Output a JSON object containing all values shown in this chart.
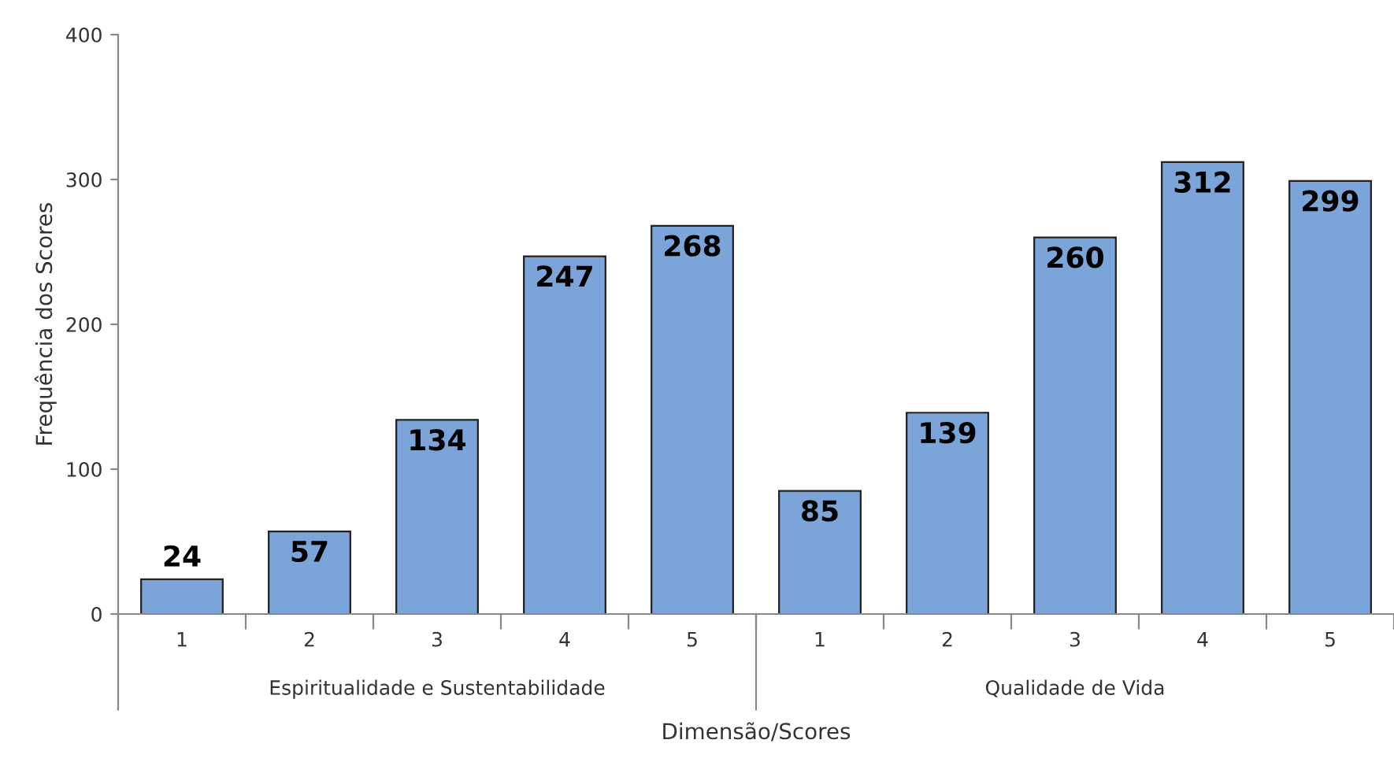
{
  "chart_data": {
    "type": "bar",
    "xlabel": "Dimensão/Scores",
    "ylabel": "Frequência dos Scores",
    "categories": [
      "1",
      "2",
      "3",
      "4",
      "5",
      "1",
      "2",
      "3",
      "4",
      "5"
    ],
    "values": [
      24,
      57,
      134,
      247,
      268,
      85,
      139,
      260,
      312,
      299
    ],
    "color": "#7ba4d8",
    "ylim": [
      0,
      400
    ],
    "yticks": [
      0,
      100,
      200,
      300,
      400
    ],
    "annotations": [
      "Espiritualidade e Sustentabilidade",
      "Qualidade de Vida"
    ],
    "data_labels": true
  }
}
